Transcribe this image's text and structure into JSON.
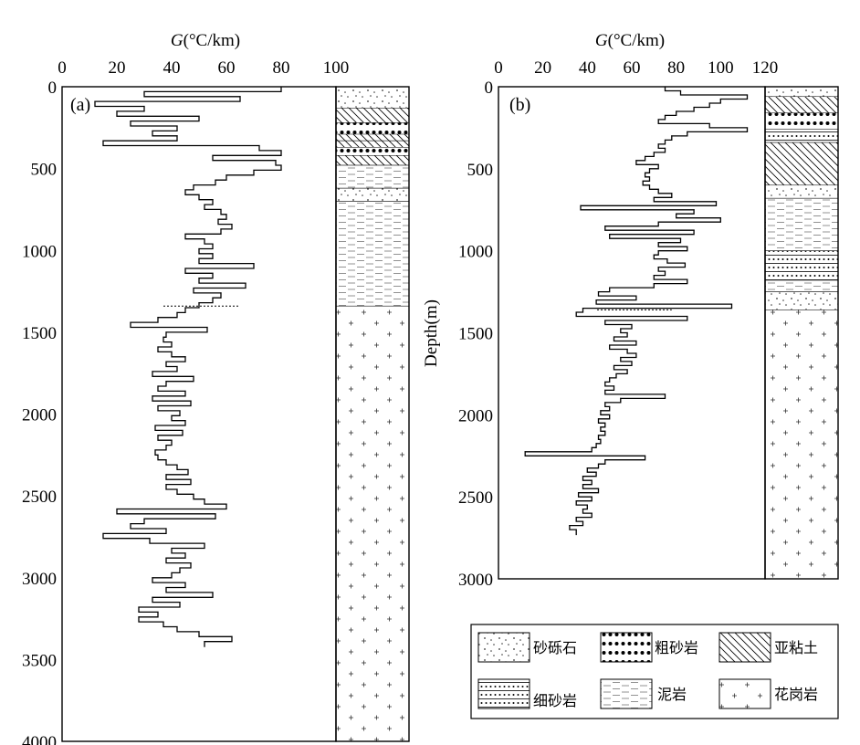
{
  "chart_data": [
    {
      "type": "line",
      "panel_label": "(a)",
      "title": "G(°C/km)",
      "xlabel": "G(°C/km)",
      "ylabel": "",
      "xlim": [
        0,
        100
      ],
      "ylim": [
        4000,
        0
      ],
      "x_ticks": [
        "0",
        "20",
        "40",
        "60",
        "80",
        "100"
      ],
      "y_ticks": [
        "0",
        "500",
        "1000",
        "1500",
        "2000",
        "2500",
        "3000",
        "3500",
        "4000"
      ],
      "contact_depth": 1340,
      "series": [
        {
          "values_format": "stepped gradient profile, [gradient °C/km, depth m]",
          "points": [
            [
              80,
              0
            ],
            [
              30,
              30
            ],
            [
              65,
              60
            ],
            [
              12,
              90
            ],
            [
              30,
              120
            ],
            [
              20,
              150
            ],
            [
              50,
              180
            ],
            [
              25,
              210
            ],
            [
              42,
              240
            ],
            [
              33,
              270
            ],
            [
              42,
              300
            ],
            [
              15,
              330
            ],
            [
              72,
              360
            ],
            [
              80,
              390
            ],
            [
              55,
              420
            ],
            [
              78,
              450
            ],
            [
              80,
              480
            ],
            [
              70,
              510
            ],
            [
              60,
              540
            ],
            [
              56,
              570
            ],
            [
              48,
              600
            ],
            [
              45,
              630
            ],
            [
              50,
              660
            ],
            [
              55,
              690
            ],
            [
              52,
              720
            ],
            [
              58,
              750
            ],
            [
              60,
              780
            ],
            [
              57,
              810
            ],
            [
              62,
              840
            ],
            [
              58,
              870
            ],
            [
              45,
              900
            ],
            [
              52,
              930
            ],
            [
              55,
              960
            ],
            [
              50,
              990
            ],
            [
              55,
              1020
            ],
            [
              50,
              1050
            ],
            [
              70,
              1080
            ],
            [
              45,
              1110
            ],
            [
              55,
              1140
            ],
            [
              50,
              1170
            ],
            [
              67,
              1200
            ],
            [
              48,
              1230
            ],
            [
              58,
              1260
            ],
            [
              55,
              1290
            ],
            [
              50,
              1320
            ],
            [
              45,
              1350
            ],
            [
              42,
              1380
            ],
            [
              35,
              1410
            ],
            [
              25,
              1440
            ],
            [
              53,
              1470
            ],
            [
              38,
              1500
            ],
            [
              37,
              1530
            ],
            [
              40,
              1560
            ],
            [
              35,
              1590
            ],
            [
              40,
              1620
            ],
            [
              45,
              1650
            ],
            [
              38,
              1680
            ],
            [
              42,
              1710
            ],
            [
              33,
              1740
            ],
            [
              48,
              1770
            ],
            [
              38,
              1800
            ],
            [
              35,
              1830
            ],
            [
              45,
              1860
            ],
            [
              33,
              1890
            ],
            [
              47,
              1920
            ],
            [
              35,
              1950
            ],
            [
              43,
              1980
            ],
            [
              40,
              2010
            ],
            [
              45,
              2040
            ],
            [
              34,
              2070
            ],
            [
              44,
              2100
            ],
            [
              35,
              2130
            ],
            [
              40,
              2160
            ],
            [
              38,
              2190
            ],
            [
              34,
              2220
            ],
            [
              35,
              2250
            ],
            [
              38,
              2280
            ],
            [
              42,
              2310
            ],
            [
              46,
              2340
            ],
            [
              38,
              2370
            ],
            [
              47,
              2400
            ],
            [
              38,
              2430
            ],
            [
              42,
              2460
            ],
            [
              48,
              2490
            ],
            [
              52,
              2520
            ],
            [
              60,
              2550
            ],
            [
              20,
              2580
            ],
            [
              56,
              2610
            ],
            [
              30,
              2640
            ],
            [
              25,
              2670
            ],
            [
              38,
              2700
            ],
            [
              15,
              2730
            ],
            [
              32,
              2760
            ],
            [
              52,
              2790
            ],
            [
              40,
              2820
            ],
            [
              45,
              2850
            ],
            [
              38,
              2880
            ],
            [
              47,
              2910
            ],
            [
              43,
              2940
            ],
            [
              40,
              2970
            ],
            [
              33,
              3000
            ],
            [
              45,
              3030
            ],
            [
              38,
              3060
            ],
            [
              55,
              3090
            ],
            [
              33,
              3120
            ],
            [
              43,
              3150
            ],
            [
              28,
              3180
            ],
            [
              35,
              3210
            ],
            [
              28,
              3240
            ],
            [
              37,
              3270
            ],
            [
              42,
              3300
            ],
            [
              50,
              3330
            ],
            [
              62,
              3360
            ],
            [
              52,
              3390
            ]
          ]
        }
      ]
    },
    {
      "type": "line",
      "panel_label": "(b)",
      "title": "G(°C/km)",
      "xlabel": "G(°C/km)",
      "ylabel": "Depth(m)",
      "xlim": [
        0,
        120
      ],
      "ylim": [
        3000,
        0
      ],
      "x_ticks": [
        "0",
        "20",
        "40",
        "60",
        "80",
        "100",
        "120"
      ],
      "y_ticks": [
        "0",
        "500",
        "1000",
        "1500",
        "2000",
        "2500",
        "3000"
      ],
      "contact_depth": 1360,
      "series": [
        {
          "values_format": "stepped gradient profile, [gradient °C/km, depth m]",
          "points": [
            [
              75,
              0
            ],
            [
              82,
              25
            ],
            [
              112,
              50
            ],
            [
              100,
              75
            ],
            [
              95,
              100
            ],
            [
              88,
              125
            ],
            [
              80,
              150
            ],
            [
              75,
              175
            ],
            [
              72,
              200
            ],
            [
              95,
              225
            ],
            [
              112,
              250
            ],
            [
              85,
              275
            ],
            [
              78,
              300
            ],
            [
              75,
              325
            ],
            [
              72,
              350
            ],
            [
              75,
              375
            ],
            [
              70,
              400
            ],
            [
              66,
              425
            ],
            [
              62,
              450
            ],
            [
              72,
              475
            ],
            [
              68,
              500
            ],
            [
              66,
              525
            ],
            [
              68,
              550
            ],
            [
              65,
              575
            ],
            [
              68,
              600
            ],
            [
              72,
              625
            ],
            [
              78,
              650
            ],
            [
              70,
              675
            ],
            [
              98,
              700
            ],
            [
              37,
              725
            ],
            [
              88,
              750
            ],
            [
              80,
              775
            ],
            [
              100,
              800
            ],
            [
              72,
              825
            ],
            [
              48,
              850
            ],
            [
              88,
              875
            ],
            [
              50,
              900
            ],
            [
              82,
              925
            ],
            [
              72,
              950
            ],
            [
              85,
              975
            ],
            [
              72,
              1000
            ],
            [
              70,
              1025
            ],
            [
              76,
              1050
            ],
            [
              84,
              1075
            ],
            [
              72,
              1100
            ],
            [
              75,
              1125
            ],
            [
              70,
              1150
            ],
            [
              85,
              1175
            ],
            [
              70,
              1200
            ],
            [
              50,
              1225
            ],
            [
              45,
              1250
            ],
            [
              62,
              1275
            ],
            [
              44,
              1300
            ],
            [
              105,
              1325
            ],
            [
              38,
              1350
            ],
            [
              35,
              1375
            ],
            [
              85,
              1400
            ],
            [
              48,
              1425
            ],
            [
              60,
              1450
            ],
            [
              55,
              1475
            ],
            [
              58,
              1500
            ],
            [
              52,
              1525
            ],
            [
              62,
              1550
            ],
            [
              50,
              1575
            ],
            [
              58,
              1600
            ],
            [
              62,
              1625
            ],
            [
              55,
              1650
            ],
            [
              60,
              1675
            ],
            [
              52,
              1700
            ],
            [
              58,
              1725
            ],
            [
              53,
              1750
            ],
            [
              50,
              1775
            ],
            [
              48,
              1800
            ],
            [
              52,
              1825
            ],
            [
              48,
              1850
            ],
            [
              75,
              1875
            ],
            [
              55,
              1900
            ],
            [
              48,
              1925
            ],
            [
              50,
              1950
            ],
            [
              46,
              1975
            ],
            [
              50,
              2000
            ],
            [
              45,
              2025
            ],
            [
              48,
              2050
            ],
            [
              46,
              2075
            ],
            [
              48,
              2100
            ],
            [
              45,
              2125
            ],
            [
              46,
              2150
            ],
            [
              44,
              2175
            ],
            [
              42,
              2200
            ],
            [
              12,
              2225
            ],
            [
              66,
              2250
            ],
            [
              48,
              2275
            ],
            [
              45,
              2300
            ],
            [
              40,
              2325
            ],
            [
              44,
              2350
            ],
            [
              38,
              2375
            ],
            [
              42,
              2400
            ],
            [
              38,
              2425
            ],
            [
              45,
              2450
            ],
            [
              36,
              2475
            ],
            [
              42,
              2500
            ],
            [
              35,
              2525
            ],
            [
              40,
              2550
            ],
            [
              38,
              2575
            ],
            [
              42,
              2600
            ],
            [
              35,
              2625
            ],
            [
              38,
              2650
            ],
            [
              32,
              2675
            ],
            [
              35,
              2700
            ]
          ]
        }
      ]
    }
  ],
  "legend": {
    "items": [
      {
        "label": "砂砾石",
        "pattern": "gravel"
      },
      {
        "label": "粗砂岩",
        "pattern": "coarse"
      },
      {
        "label": "亚粘土",
        "pattern": "clay"
      },
      {
        "label": "细砂岩",
        "pattern": "fine"
      },
      {
        "label": "泥岩",
        "pattern": "mud"
      },
      {
        "label": "花岗岩",
        "pattern": "granite"
      }
    ]
  },
  "lithology_columns": [
    {
      "panel": "(a)",
      "layers": [
        {
          "top": 0,
          "bottom": 130,
          "pattern": "gravel"
        },
        {
          "top": 130,
          "bottom": 330,
          "pattern": "clay"
        },
        {
          "top": 220,
          "bottom": 290,
          "pattern": "coarse"
        },
        {
          "top": 330,
          "bottom": 380,
          "pattern": "clay"
        },
        {
          "top": 370,
          "bottom": 420,
          "pattern": "coarse"
        },
        {
          "top": 420,
          "bottom": 480,
          "pattern": "clay"
        },
        {
          "top": 480,
          "bottom": 620,
          "pattern": "mud"
        },
        {
          "top": 620,
          "bottom": 700,
          "pattern": "gravel"
        },
        {
          "top": 700,
          "bottom": 1340,
          "pattern": "mud"
        },
        {
          "top": 1340,
          "bottom": 4000,
          "pattern": "granite"
        }
      ]
    },
    {
      "panel": "(b)",
      "layers": [
        {
          "top": 0,
          "bottom": 60,
          "pattern": "gravel"
        },
        {
          "top": 60,
          "bottom": 160,
          "pattern": "clay"
        },
        {
          "top": 160,
          "bottom": 260,
          "pattern": "coarse"
        },
        {
          "top": 260,
          "bottom": 340,
          "pattern": "fine"
        },
        {
          "top": 340,
          "bottom": 600,
          "pattern": "clay"
        },
        {
          "top": 600,
          "bottom": 680,
          "pattern": "gravel"
        },
        {
          "top": 680,
          "bottom": 1000,
          "pattern": "mud"
        },
        {
          "top": 1000,
          "bottom": 1180,
          "pattern": "fine"
        },
        {
          "top": 1180,
          "bottom": 1250,
          "pattern": "mud"
        },
        {
          "top": 1250,
          "bottom": 1360,
          "pattern": "gravel"
        },
        {
          "top": 1360,
          "bottom": 3000,
          "pattern": "granite"
        }
      ]
    }
  ]
}
